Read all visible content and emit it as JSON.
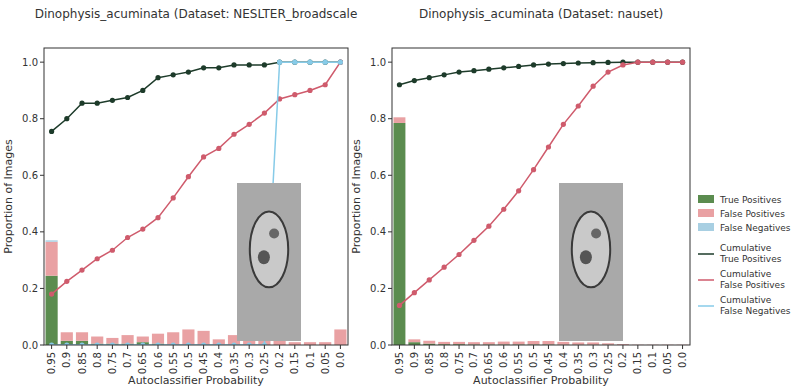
{
  "chart_data": [
    {
      "type": "bar",
      "title": "Dinophysis_acuminata (Dataset: NESLTER_broadscale",
      "x_label": "Autoclassifier Probability",
      "y_label": "Proportion of Images",
      "categories": [
        "0.95",
        "0.9",
        "0.85",
        "0.8",
        "0.75",
        "0.7",
        "0.65",
        "0.6",
        "0.55",
        "0.5",
        "0.45",
        "0.4",
        "0.35",
        "0.3",
        "0.25",
        "0.2",
        "0.15",
        "0.1",
        "0.05",
        "0.0"
      ],
      "stacked": true,
      "grid": false,
      "ylim": [
        0,
        1.05
      ],
      "yticks": [
        {
          "value": 0,
          "label": "0.0"
        },
        0.2,
        0.4,
        0.6,
        0.8,
        {
          "value": 1,
          "label": "1.0"
        }
      ],
      "series": [
        {
          "type": "bar",
          "color": "#5b8c4f",
          "values": [
            0.245,
            0.015,
            0.015,
            0.005,
            0.005,
            0.005,
            0.01,
            0.005,
            0,
            0,
            0,
            0,
            0,
            0,
            0,
            0,
            0,
            0,
            0,
            0
          ]
        },
        {
          "type": "bar",
          "color": "#e9a1a3",
          "values": [
            0.12,
            0.03,
            0.03,
            0.025,
            0.02,
            0.03,
            0.02,
            0.035,
            0.045,
            0.055,
            0.05,
            0.02,
            0.035,
            0.02,
            0.025,
            0.035,
            0.01,
            0.01,
            0.01,
            0.055
          ]
        },
        {
          "type": "bar",
          "color": "#a8cfe2",
          "values": [
            0.005,
            0,
            0,
            0,
            0,
            0,
            0,
            0,
            0,
            0,
            0,
            0,
            0,
            0,
            0,
            0.008,
            0,
            0,
            0,
            0
          ]
        },
        {
          "type": "line",
          "color": "#1d3b2a",
          "marker": "circle",
          "values": [
            0.755,
            0.8,
            0.855,
            0.855,
            0.865,
            0.875,
            0.9,
            0.945,
            0.955,
            0.965,
            0.98,
            0.98,
            0.99,
            0.99,
            0.99,
            1,
            1,
            1,
            1,
            1
          ]
        },
        {
          "type": "line",
          "color": "#cf5b6c",
          "marker": "circle",
          "values": [
            0.18,
            0.225,
            0.265,
            0.305,
            0.335,
            0.38,
            0.41,
            0.45,
            0.52,
            0.595,
            0.665,
            0.695,
            0.745,
            0.78,
            0.82,
            0.87,
            0.885,
            0.9,
            0.92,
            1
          ]
        },
        {
          "type": "line",
          "color": "#87cbe8",
          "marker": "circle",
          "values": [
            0,
            0,
            0,
            0,
            0,
            0,
            0,
            0,
            0,
            0,
            0,
            0,
            0,
            0,
            0,
            1,
            1,
            1,
            1,
            1
          ]
        }
      ]
    },
    {
      "type": "bar",
      "title": "Dinophysis_acuminata (Dataset: nauset)",
      "x_label": "Autoclassifier Probability",
      "y_label": "Proportion of Images",
      "categories": [
        "0.95",
        "0.9",
        "0.85",
        "0.8",
        "0.75",
        "0.7",
        "0.65",
        "0.6",
        "0.55",
        "0.5",
        "0.45",
        "0.4",
        "0.35",
        "0.3",
        "0.25",
        "0.2",
        "0.15",
        "0.1",
        "0.05",
        "0.0"
      ],
      "stacked": true,
      "grid": false,
      "legend": "right",
      "ylim": [
        0,
        1.05
      ],
      "yticks": [
        {
          "value": 0,
          "label": "0.0"
        },
        0.2,
        0.4,
        0.6,
        0.8,
        {
          "value": 1,
          "label": "1.0"
        }
      ],
      "series": [
        {
          "name": "True Positives",
          "type": "bar",
          "color": "#5b8c4f",
          "values": [
            0.785,
            0.01,
            0.005,
            0.003,
            0.003,
            0.002,
            0.002,
            0.002,
            0.002,
            0.002,
            0.002,
            0.001,
            0.001,
            0.001,
            0.001,
            0,
            0,
            0,
            0,
            0
          ]
        },
        {
          "name": "False Positives",
          "type": "bar",
          "color": "#e9a1a3",
          "values": [
            0.02,
            0.01,
            0.01,
            0.008,
            0.008,
            0.008,
            0.008,
            0.01,
            0.01,
            0.012,
            0.012,
            0.01,
            0.008,
            0.008,
            0.005,
            0.003,
            0.001,
            0.001,
            0.001,
            0.001
          ]
        },
        {
          "name": "False Negatives",
          "type": "bar",
          "color": "#a8cfe2",
          "values": [
            0,
            0,
            0,
            0,
            0,
            0,
            0,
            0,
            0,
            0,
            0,
            0,
            0,
            0,
            0,
            0,
            0,
            0,
            0,
            0
          ]
        },
        {
          "name": "Cumulative True Positives",
          "type": "line",
          "color": "#1d3b2a",
          "marker": "circle",
          "values": [
            0.92,
            0.935,
            0.945,
            0.955,
            0.965,
            0.97,
            0.975,
            0.98,
            0.985,
            0.99,
            0.993,
            0.995,
            0.997,
            0.998,
            0.999,
            1,
            1,
            1,
            1,
            1
          ]
        },
        {
          "name": "Cumulative False Positives",
          "type": "line",
          "color": "#cf5b6c",
          "marker": "circle",
          "values": [
            0.14,
            0.185,
            0.23,
            0.275,
            0.32,
            0.37,
            0.42,
            0.48,
            0.545,
            0.62,
            0.7,
            0.78,
            0.845,
            0.915,
            0.965,
            0.99,
            1,
            1,
            1,
            1
          ]
        },
        {
          "name": "Cumulative False Negatives",
          "type": "line",
          "color": "#87cbe8",
          "marker": "circle",
          "values": [
            null,
            null,
            null,
            null,
            null,
            null,
            null,
            null,
            null,
            null,
            null,
            null,
            null,
            null,
            null,
            null,
            null,
            null,
            null,
            null
          ]
        }
      ]
    }
  ]
}
